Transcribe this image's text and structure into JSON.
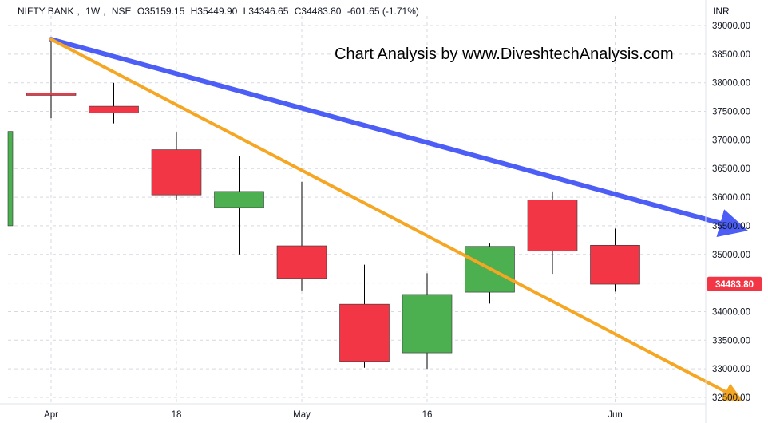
{
  "header": {
    "symbol": "NIFTY BANK",
    "interval": "1W",
    "exchange": "NSE",
    "open": "O35159.15",
    "high": "H35449.90",
    "low": "L34346.65",
    "close": "C34483.80",
    "change": "-601.65 (-1.71%)"
  },
  "watermark": "Chart Analysis by www.DiveshtechAnalysis.com",
  "currency": "INR",
  "last_price_label": "34483.80",
  "colors": {
    "up": "#4caf50",
    "down": "#f23645",
    "wick": "#000000",
    "trendline_1": "#4c5ef5",
    "trendline_2": "#f5a623",
    "grid": "#d6d9e0",
    "price_tag": "#f23645"
  },
  "chart_data": {
    "type": "candlestick",
    "y_axis": {
      "ylim": [
        32500,
        39000
      ],
      "ticks": [
        "39000.00",
        "38500.00",
        "38000.00",
        "37500.00",
        "37000.00",
        "36500.00",
        "36000.00",
        "35500.00",
        "35000.00",
        "34500.00",
        "34000.00",
        "33500.00",
        "33000.00",
        "32500.00"
      ]
    },
    "x_axis": {
      "ticks": [
        {
          "label": "Apr",
          "index": 0
        },
        {
          "label": "18",
          "index": 2
        },
        {
          "label": "May",
          "index": 4
        },
        {
          "label": "16",
          "index": 6
        },
        {
          "label": "Jun",
          "index": 9
        }
      ]
    },
    "candles": [
      {
        "index": -0.7,
        "open": 35500,
        "high": 37150,
        "low": 35500,
        "close": 37150
      },
      {
        "index": 0,
        "open": 37820,
        "high": 38780,
        "low": 37380,
        "close": 37780
      },
      {
        "index": 1,
        "open": 37590,
        "high": 38000,
        "low": 37290,
        "close": 37470
      },
      {
        "index": 2,
        "open": 36830,
        "high": 37130,
        "low": 35950,
        "close": 36040
      },
      {
        "index": 3,
        "open": 35820,
        "high": 36720,
        "low": 35000,
        "close": 36100
      },
      {
        "index": 4,
        "open": 35150,
        "high": 36270,
        "low": 34370,
        "close": 34580
      },
      {
        "index": 5,
        "open": 34130,
        "high": 34820,
        "low": 33020,
        "close": 33130
      },
      {
        "index": 6,
        "open": 33280,
        "high": 34670,
        "low": 33000,
        "close": 34300
      },
      {
        "index": 7,
        "open": 34340,
        "high": 35190,
        "low": 34140,
        "close": 35140
      },
      {
        "index": 8,
        "open": 35950,
        "high": 36100,
        "low": 34660,
        "close": 35060
      },
      {
        "index": 9,
        "open": 35160,
        "high": 35450,
        "low": 34350,
        "close": 34480
      }
    ],
    "trendlines": [
      {
        "name": "",
        "color": "#4c5ef5",
        "start": {
          "index": 0,
          "price": 38760
        },
        "end": {
          "index": 10.9,
          "price": 35480
        }
      },
      {
        "name": "",
        "color": "#f5a623",
        "start": {
          "index": 0,
          "price": 38760
        },
        "end": {
          "index": 10.9,
          "price": 32520
        }
      }
    ],
    "last_price": 34483.8,
    "grid": true
  }
}
